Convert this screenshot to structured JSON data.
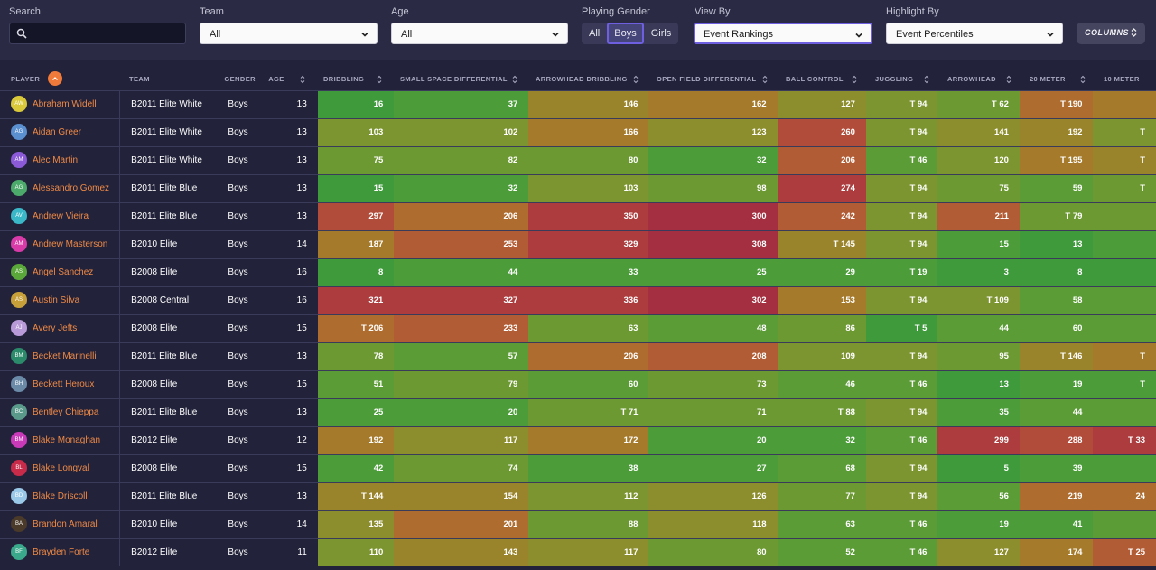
{
  "filters": {
    "search_label": "Search",
    "search_placeholder": "",
    "team_label": "Team",
    "team_value": "All",
    "age_label": "Age",
    "age_value": "All",
    "gender_label": "Playing Gender",
    "gender_options": [
      "All",
      "Boys",
      "Girls"
    ],
    "gender_selected": "Boys",
    "view_label": "View By",
    "view_value": "Event Rankings",
    "highlight_label": "Highlight By",
    "highlight_value": "Event Percentiles",
    "columns_label": "COLUMNS"
  },
  "columns": {
    "player": "PLAYER",
    "team": "TEAM",
    "gender": "GENDER",
    "age": "AGE",
    "metrics": [
      "DRIBBLING",
      "SMALL SPACE DIFFERENTIAL",
      "ARROWHEAD DRIBBLING",
      "OPEN FIELD DIFFERENTIAL",
      "BALL CONTROL",
      "JUGGLING",
      "ARROWHEAD",
      "20 METER",
      "10 METER"
    ]
  },
  "colors": {
    "bg": "#22223a",
    "accent": "#f07a3a",
    "selection": "#6d5fe0",
    "cell_colors": [
      "#3f9a3c",
      "#4c9d3a",
      "#5c9c37",
      "#6d9933",
      "#7d9530",
      "#8c8e2d",
      "#9a842b",
      "#a67a2b",
      "#ae6c2f",
      "#b25c35",
      "#b24c3a",
      "#ac3c3e",
      "#a32f40"
    ]
  },
  "rows": [
    {
      "initials": "AW",
      "avatar_color": "#d8c83a",
      "name": "Abraham Widell",
      "team": "B2011 Elite White",
      "gender": "Boys",
      "age": "13",
      "values": [
        "16",
        "37",
        "146",
        "162",
        "127",
        "T 94",
        "T 62",
        "T 190",
        ""
      ],
      "levels": [
        0,
        1,
        6,
        7,
        5,
        4,
        3,
        8,
        7
      ]
    },
    {
      "initials": "AG",
      "avatar_color": "#5a8fd0",
      "name": "Aidan Greer",
      "team": "B2011 Elite White",
      "gender": "Boys",
      "age": "13",
      "values": [
        "103",
        "102",
        "166",
        "123",
        "260",
        "T 94",
        "141",
        "192",
        "T"
      ],
      "levels": [
        4,
        4,
        7,
        5,
        10,
        4,
        5,
        6,
        4
      ]
    },
    {
      "initials": "AM",
      "avatar_color": "#8a5ad8",
      "name": "Alec Martin",
      "team": "B2011 Elite White",
      "gender": "Boys",
      "age": "13",
      "values": [
        "75",
        "82",
        "80",
        "32",
        "206",
        "T 46",
        "120",
        "T 195",
        "T"
      ],
      "levels": [
        3,
        3,
        3,
        1,
        9,
        2,
        4,
        7,
        6
      ]
    },
    {
      "initials": "AG",
      "avatar_color": "#4caa6a",
      "name": "Alessandro Gomez",
      "team": "B2011 Elite Blue",
      "gender": "Boys",
      "age": "13",
      "values": [
        "15",
        "32",
        "103",
        "98",
        "274",
        "T 94",
        "75",
        "59",
        "T"
      ],
      "levels": [
        0,
        1,
        4,
        3,
        11,
        4,
        3,
        2,
        3
      ]
    },
    {
      "initials": "AV",
      "avatar_color": "#3ab8c8",
      "name": "Andrew Vieira",
      "team": "B2011 Elite Blue",
      "gender": "Boys",
      "age": "13",
      "values": [
        "297",
        "206",
        "350",
        "300",
        "242",
        "T 94",
        "211",
        "T 79",
        ""
      ],
      "levels": [
        10,
        8,
        11,
        12,
        9,
        4,
        9,
        3,
        3
      ]
    },
    {
      "initials": "AM",
      "avatar_color": "#d83aa8",
      "name": "Andrew Masterson",
      "team": "B2010 Elite",
      "gender": "Boys",
      "age": "14",
      "values": [
        "187",
        "253",
        "329",
        "308",
        "T 145",
        "T 94",
        "15",
        "13",
        ""
      ],
      "levels": [
        7,
        9,
        11,
        12,
        6,
        4,
        1,
        0,
        1
      ]
    },
    {
      "initials": "AS",
      "avatar_color": "#5aa83a",
      "name": "Angel Sanchez",
      "team": "B2008 Elite",
      "gender": "Boys",
      "age": "16",
      "values": [
        "8",
        "44",
        "33",
        "25",
        "29",
        "T 19",
        "3",
        "8",
        ""
      ],
      "levels": [
        0,
        1,
        1,
        1,
        1,
        1,
        0,
        0,
        0
      ]
    },
    {
      "initials": "AS",
      "avatar_color": "#c8a03a",
      "name": "Austin Silva",
      "team": "B2008 Central",
      "gender": "Boys",
      "age": "16",
      "values": [
        "321",
        "327",
        "336",
        "302",
        "153",
        "T 94",
        "T 109",
        "58",
        ""
      ],
      "levels": [
        11,
        11,
        11,
        12,
        7,
        4,
        4,
        2,
        2
      ]
    },
    {
      "initials": "AJ",
      "avatar_color": "#b89ad8",
      "name": "Avery Jefts",
      "team": "B2008 Elite",
      "gender": "Boys",
      "age": "15",
      "values": [
        "T 206",
        "233",
        "63",
        "48",
        "86",
        "T 5",
        "44",
        "60",
        ""
      ],
      "levels": [
        8,
        9,
        3,
        2,
        3,
        0,
        2,
        2,
        2
      ]
    },
    {
      "initials": "BM",
      "avatar_color": "#2a8a6a",
      "name": "Becket Marinelli",
      "team": "B2011 Elite Blue",
      "gender": "Boys",
      "age": "13",
      "values": [
        "78",
        "57",
        "206",
        "208",
        "109",
        "T 94",
        "95",
        "T 146",
        "T"
      ],
      "levels": [
        3,
        2,
        8,
        9,
        4,
        4,
        3,
        6,
        7
      ]
    },
    {
      "initials": "BH",
      "avatar_color": "#6a8aa8",
      "name": "Beckett Heroux",
      "team": "B2008 Elite",
      "gender": "Boys",
      "age": "15",
      "values": [
        "51",
        "79",
        "60",
        "73",
        "46",
        "T 46",
        "13",
        "19",
        "T"
      ],
      "levels": [
        2,
        3,
        2,
        3,
        2,
        2,
        0,
        1,
        1
      ]
    },
    {
      "initials": "BC",
      "avatar_color": "#5a9a8a",
      "name": "Bentley Chieppa",
      "team": "B2011 Elite Blue",
      "gender": "Boys",
      "age": "13",
      "values": [
        "25",
        "20",
        "T 71",
        "71",
        "T 88",
        "T 94",
        "35",
        "44",
        ""
      ],
      "levels": [
        1,
        1,
        3,
        3,
        3,
        4,
        1,
        2,
        2
      ]
    },
    {
      "initials": "BM",
      "avatar_color": "#c83ab8",
      "name": "Blake Monaghan",
      "team": "B2012 Elite",
      "gender": "Boys",
      "age": "12",
      "values": [
        "192",
        "117",
        "172",
        "20",
        "32",
        "T 46",
        "299",
        "288",
        "T 33"
      ],
      "levels": [
        7,
        5,
        7,
        1,
        1,
        2,
        11,
        10,
        11
      ]
    },
    {
      "initials": "BL",
      "avatar_color": "#c82a4a",
      "name": "Blake Longval",
      "team": "B2008 Elite",
      "gender": "Boys",
      "age": "15",
      "values": [
        "42",
        "74",
        "38",
        "27",
        "68",
        "T 94",
        "5",
        "39",
        ""
      ],
      "levels": [
        1,
        3,
        1,
        1,
        2,
        4,
        0,
        1,
        1
      ]
    },
    {
      "initials": "BD",
      "avatar_color": "#9ac8e8",
      "name": "Blake Driscoll",
      "team": "B2011 Elite Blue",
      "gender": "Boys",
      "age": "13",
      "values": [
        "T 144",
        "154",
        "112",
        "126",
        "77",
        "T 94",
        "56",
        "219",
        "24"
      ],
      "levels": [
        6,
        6,
        4,
        5,
        3,
        4,
        2,
        8,
        8
      ]
    },
    {
      "initials": "BA",
      "avatar_color": "#4a3a2a",
      "name": "Brandon Amaral",
      "team": "B2010 Elite",
      "gender": "Boys",
      "age": "14",
      "values": [
        "135",
        "201",
        "88",
        "118",
        "63",
        "T 46",
        "19",
        "41",
        ""
      ],
      "levels": [
        5,
        8,
        3,
        5,
        2,
        2,
        1,
        1,
        2
      ]
    },
    {
      "initials": "BF",
      "avatar_color": "#3aa88a",
      "name": "Brayden Forte",
      "team": "B2012 Elite",
      "gender": "Boys",
      "age": "11",
      "values": [
        "110",
        "143",
        "117",
        "80",
        "52",
        "T 46",
        "127",
        "174",
        "T 25"
      ],
      "levels": [
        4,
        6,
        5,
        3,
        2,
        2,
        5,
        7,
        9
      ]
    }
  ]
}
